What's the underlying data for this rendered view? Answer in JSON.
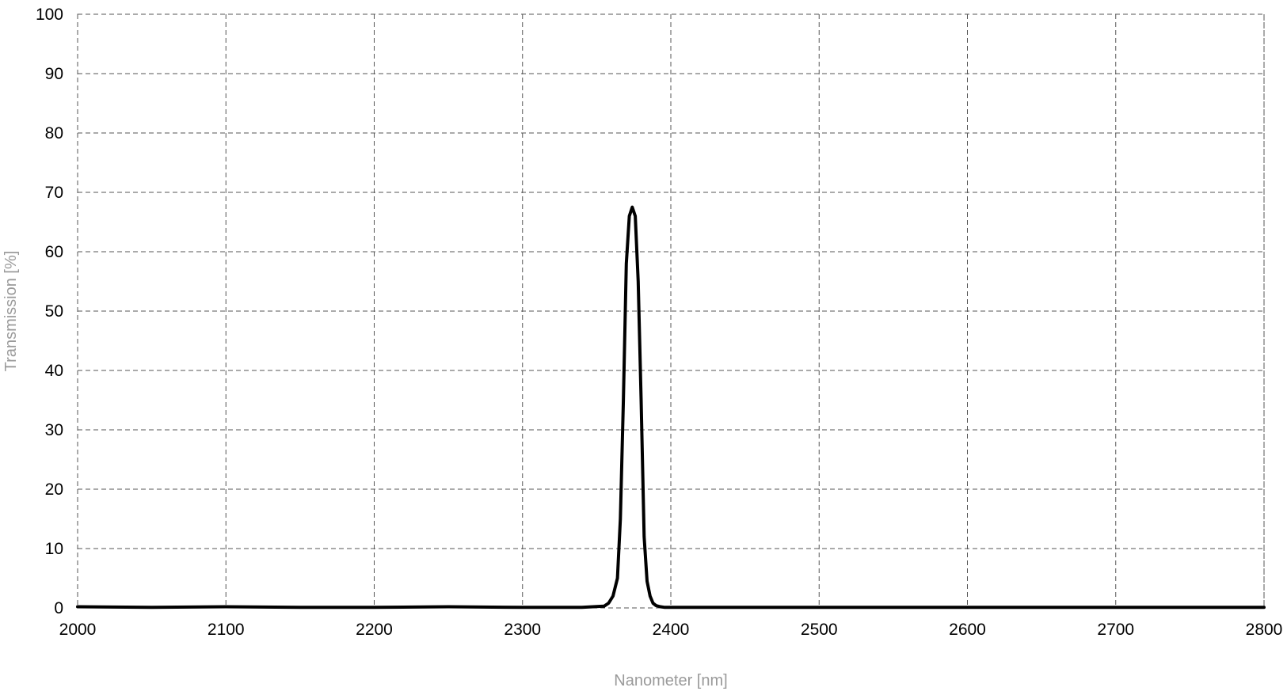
{
  "chart_data": {
    "type": "line",
    "title": "",
    "xlabel": "Nanometer [nm]",
    "ylabel": "Transmission [%]",
    "xlim": [
      2000,
      2800
    ],
    "ylim": [
      0,
      100
    ],
    "x_ticks": [
      2000,
      2100,
      2200,
      2300,
      2400,
      2500,
      2600,
      2700,
      2800
    ],
    "y_ticks": [
      0,
      10,
      20,
      30,
      40,
      50,
      60,
      70,
      80,
      90,
      100
    ],
    "grid": true,
    "legend": "none",
    "series": [
      {
        "color": "#000000",
        "x": [
          2000,
          2050,
          2100,
          2150,
          2200,
          2250,
          2300,
          2340,
          2355,
          2358,
          2361,
          2364,
          2366,
          2368,
          2370,
          2372,
          2374,
          2376,
          2378,
          2380,
          2382,
          2384,
          2386,
          2388,
          2390,
          2393,
          2396,
          2400,
          2450,
          2500,
          2550,
          2600,
          2650,
          2700,
          2750,
          2800
        ],
        "y": [
          0.2,
          0.1,
          0.2,
          0.1,
          0.1,
          0.2,
          0.1,
          0.1,
          0.3,
          0.8,
          2,
          5,
          15,
          35,
          58,
          66,
          67.5,
          66,
          55,
          35,
          12,
          4.5,
          2,
          0.8,
          0.4,
          0.2,
          0.1,
          0.1,
          0.1,
          0.1,
          0.1,
          0.1,
          0.1,
          0.1,
          0.1,
          0.1
        ]
      }
    ]
  }
}
